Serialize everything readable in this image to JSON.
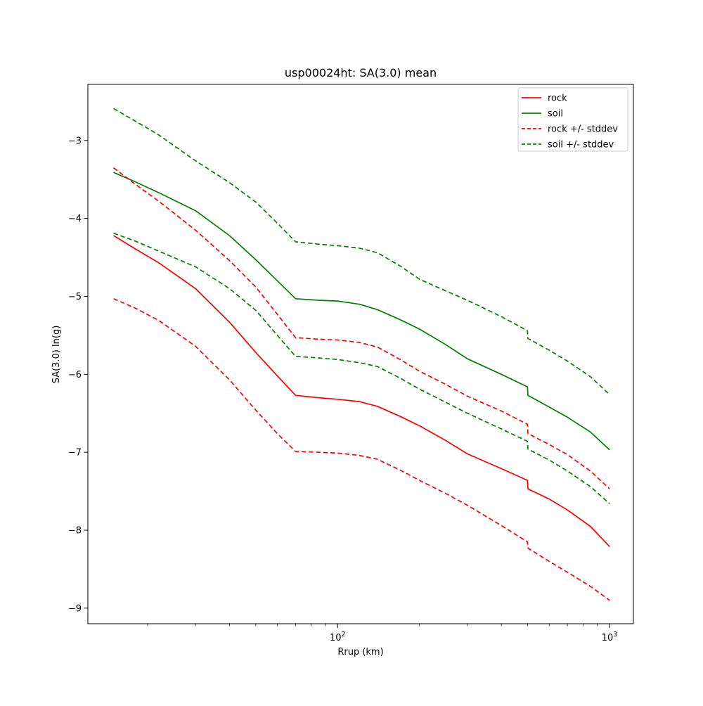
{
  "figure": {
    "title": "usp00024ht: SA(3.0) mean",
    "xlabel": "Rrup (km)",
    "ylabel": "SA(3.0) ln(g)"
  },
  "chart_data": {
    "type": "line",
    "title": "usp00024ht: SA(3.0) mean",
    "xlabel": "Rrup (km)",
    "ylabel": "SA(3.0) ln(g)",
    "x_scale": "log",
    "y_scale": "linear",
    "grid": false,
    "legend_position": "upper right",
    "xlim": [
      12.06,
      1224
    ],
    "ylim": [
      -9.2,
      -2.28
    ],
    "x_major_ticks": [
      {
        "value": 100,
        "base": "10",
        "exponent": "2"
      },
      {
        "value": 1000,
        "base": "10",
        "exponent": "3"
      }
    ],
    "x_minor_ticks": [
      20,
      30,
      40,
      50,
      60,
      70,
      80,
      90,
      200,
      300,
      400,
      500,
      600,
      700,
      800,
      900
    ],
    "y_ticks": [
      {
        "value": -3,
        "label": "−3"
      },
      {
        "value": -4,
        "label": "−4"
      },
      {
        "value": -5,
        "label": "−5"
      },
      {
        "value": -6,
        "label": "−6"
      },
      {
        "value": -7,
        "label": "−7"
      },
      {
        "value": -8,
        "label": "−8"
      },
      {
        "value": -9,
        "label": "−9"
      }
    ],
    "colors": {
      "rock": "#ff0000",
      "soil": "#008000"
    },
    "x": [
      15,
      18,
      22,
      30,
      40,
      50,
      60,
      70,
      85,
      100,
      120,
      140,
      170,
      200,
      250,
      300,
      400,
      499,
      501,
      600,
      700,
      850,
      1000
    ],
    "series": [
      {
        "name": "rock",
        "color": "#ff0000",
        "dash": "solid",
        "values": [
          -4.22,
          -4.39,
          -4.57,
          -4.9,
          -5.33,
          -5.72,
          -6.02,
          -6.27,
          -6.3,
          -6.32,
          -6.35,
          -6.41,
          -6.54,
          -6.66,
          -6.85,
          -7.02,
          -7.21,
          -7.36,
          -7.47,
          -7.6,
          -7.74,
          -7.95,
          -8.21
        ]
      },
      {
        "name": "soil",
        "color": "#008000",
        "dash": "solid",
        "values": [
          -3.41,
          -3.53,
          -3.67,
          -3.9,
          -4.22,
          -4.53,
          -4.8,
          -5.03,
          -5.05,
          -5.06,
          -5.1,
          -5.17,
          -5.3,
          -5.42,
          -5.62,
          -5.8,
          -6.0,
          -6.16,
          -6.27,
          -6.42,
          -6.55,
          -6.74,
          -6.97
        ]
      },
      {
        "name": "rock-plus-stddev",
        "color": "#ff0000",
        "dash": "dashed",
        "values": [
          -3.35,
          -3.56,
          -3.78,
          -4.15,
          -4.54,
          -4.88,
          -5.23,
          -5.53,
          -5.55,
          -5.56,
          -5.59,
          -5.65,
          -5.81,
          -5.96,
          -6.13,
          -6.28,
          -6.47,
          -6.64,
          -6.76,
          -6.9,
          -7.03,
          -7.24,
          -7.47
        ]
      },
      {
        "name": "rock-minus-stddev",
        "color": "#ff0000",
        "dash": "dashed",
        "values": [
          -5.03,
          -5.15,
          -5.31,
          -5.64,
          -6.07,
          -6.46,
          -6.76,
          -6.99,
          -7.0,
          -7.01,
          -7.04,
          -7.09,
          -7.23,
          -7.36,
          -7.53,
          -7.68,
          -7.94,
          -8.15,
          -8.23,
          -8.4,
          -8.54,
          -8.72,
          -8.9
        ]
      },
      {
        "name": "soil-plus-stddev",
        "color": "#008000",
        "dash": "dashed",
        "values": [
          -2.59,
          -2.75,
          -2.93,
          -3.26,
          -3.54,
          -3.79,
          -4.06,
          -4.3,
          -4.33,
          -4.35,
          -4.38,
          -4.44,
          -4.61,
          -4.78,
          -4.93,
          -5.05,
          -5.26,
          -5.44,
          -5.54,
          -5.69,
          -5.83,
          -6.03,
          -6.26
        ]
      },
      {
        "name": "soil-minus-stddev",
        "color": "#008000",
        "dash": "dashed",
        "values": [
          -4.19,
          -4.29,
          -4.42,
          -4.62,
          -4.9,
          -5.18,
          -5.5,
          -5.77,
          -5.79,
          -5.81,
          -5.85,
          -5.9,
          -6.05,
          -6.19,
          -6.36,
          -6.5,
          -6.7,
          -6.86,
          -6.96,
          -7.1,
          -7.24,
          -7.44,
          -7.66
        ]
      }
    ],
    "legend": [
      {
        "label": "rock",
        "color": "#ff0000",
        "dash": "solid"
      },
      {
        "label": "soil",
        "color": "#008000",
        "dash": "solid"
      },
      {
        "label": "rock +/- stddev",
        "color": "#ff0000",
        "dash": "dashed"
      },
      {
        "label": "soil +/- stddev",
        "color": "#008000",
        "dash": "dashed"
      }
    ]
  }
}
